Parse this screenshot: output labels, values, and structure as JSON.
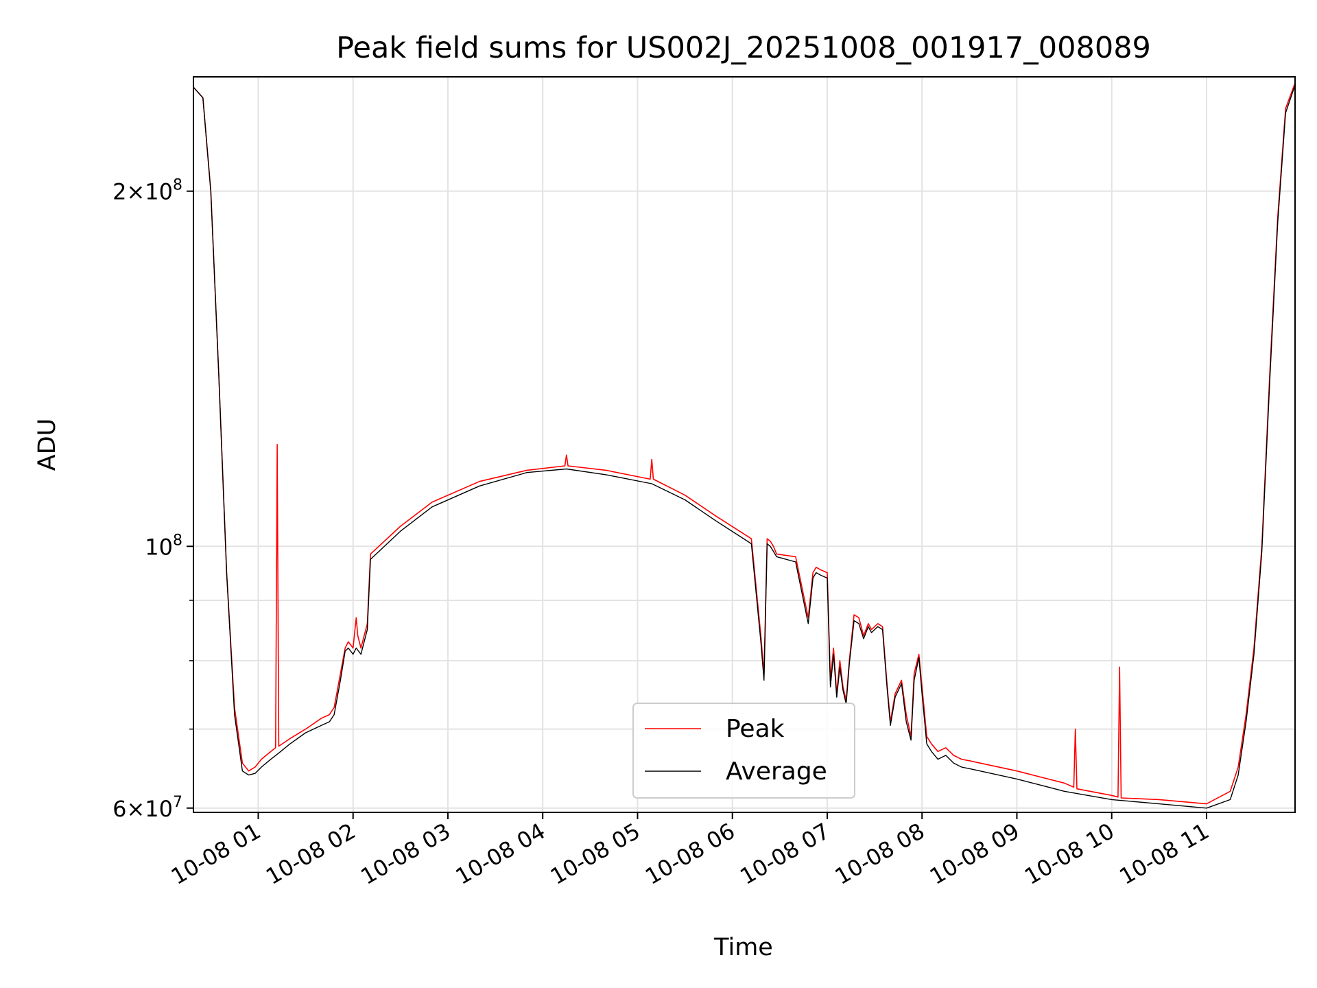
{
  "chart_data": {
    "type": "line",
    "title": "Peak field sums for US002J_20251008_001917_008089",
    "xlabel": "Time",
    "ylabel": "ADU",
    "xlim": [
      "2025-10-08 00:19",
      "2025-10-08 11:56"
    ],
    "ylim": [
      59500000,
      250000000
    ],
    "yscale": "log",
    "grid": true,
    "legend_position": "lower-center",
    "x_tick_labels": [
      "10-08 01",
      "10-08 02",
      "10-08 03",
      "10-08 04",
      "10-08 05",
      "10-08 06",
      "10-08 07",
      "10-08 08",
      "10-08 09",
      "10-08 10",
      "10-08 11"
    ],
    "y_tick_labels": [
      {
        "value": 200000000,
        "mantissa": "2",
        "exponent": "8"
      },
      {
        "value": 100000000,
        "mantissa": "",
        "exponent": "8"
      },
      {
        "value": 60000000,
        "mantissa": "6",
        "exponent": "7"
      }
    ],
    "series": [
      {
        "name": "Peak",
        "color": "#ff0000",
        "x": [
          "2025-10-08 00:19",
          "2025-10-08 00:25",
          "2025-10-08 00:30",
          "2025-10-08 00:35",
          "2025-10-08 00:40",
          "2025-10-08 00:45",
          "2025-10-08 00:50",
          "2025-10-08 00:54",
          "2025-10-08 00:58",
          "2025-10-08 01:02",
          "2025-10-08 01:08",
          "2025-10-08 01:11",
          "2025-10-08 01:12",
          "2025-10-08 01:13",
          "2025-10-08 01:20",
          "2025-10-08 01:30",
          "2025-10-08 01:40",
          "2025-10-08 01:45",
          "2025-10-08 01:48",
          "2025-10-08 01:52",
          "2025-10-08 01:55",
          "2025-10-08 01:57",
          "2025-10-08 02:00",
          "2025-10-08 02:02",
          "2025-10-08 02:03",
          "2025-10-08 02:05",
          "2025-10-08 02:09",
          "2025-10-08 02:11",
          "2025-10-08 02:30",
          "2025-10-08 02:50",
          "2025-10-08 03:20",
          "2025-10-08 03:50",
          "2025-10-08 04:14",
          "2025-10-08 04:15",
          "2025-10-08 04:16",
          "2025-10-08 04:40",
          "2025-10-08 05:08",
          "2025-10-08 05:09",
          "2025-10-08 05:10",
          "2025-10-08 05:30",
          "2025-10-08 05:50",
          "2025-10-08 06:12",
          "2025-10-08 06:18",
          "2025-10-08 06:20",
          "2025-10-08 06:22",
          "2025-10-08 06:24",
          "2025-10-08 06:26",
          "2025-10-08 06:28",
          "2025-10-08 06:40",
          "2025-10-08 06:48",
          "2025-10-08 06:51",
          "2025-10-08 06:53",
          "2025-10-08 06:56",
          "2025-10-08 07:00",
          "2025-10-08 07:02",
          "2025-10-08 07:04",
          "2025-10-08 07:06",
          "2025-10-08 07:08",
          "2025-10-08 07:10",
          "2025-10-08 07:12",
          "2025-10-08 07:14",
          "2025-10-08 07:17",
          "2025-10-08 07:20",
          "2025-10-08 07:23",
          "2025-10-08 07:26",
          "2025-10-08 07:28",
          "2025-10-08 07:32",
          "2025-10-08 07:35",
          "2025-10-08 07:38",
          "2025-10-08 07:40",
          "2025-10-08 07:43",
          "2025-10-08 07:47",
          "2025-10-08 07:50",
          "2025-10-08 07:53",
          "2025-10-08 07:55",
          "2025-10-08 07:58",
          "2025-10-08 08:00",
          "2025-10-08 08:03",
          "2025-10-08 08:06",
          "2025-10-08 08:10",
          "2025-10-08 08:15",
          "2025-10-08 08:20",
          "2025-10-08 08:25",
          "2025-10-08 08:30",
          "2025-10-08 09:00",
          "2025-10-08 09:30",
          "2025-10-08 09:36",
          "2025-10-08 09:37",
          "2025-10-08 09:38",
          "2025-10-08 10:00",
          "2025-10-08 10:04",
          "2025-10-08 10:05",
          "2025-10-08 10:06",
          "2025-10-08 10:30",
          "2025-10-08 11:00",
          "2025-10-08 11:15",
          "2025-10-08 11:20",
          "2025-10-08 11:25",
          "2025-10-08 11:30",
          "2025-10-08 11:35",
          "2025-10-08 11:40",
          "2025-10-08 11:45",
          "2025-10-08 11:50",
          "2025-10-08 11:56"
        ],
        "y": [
          245000000,
          240000000,
          200000000,
          140000000,
          95000000,
          73000000,
          65500000,
          64500000,
          65000000,
          66000000,
          67000000,
          67500000,
          122000000,
          67700000,
          68700000,
          70000000,
          71500000,
          72000000,
          73000000,
          78000000,
          82000000,
          83000000,
          82000000,
          87000000,
          84000000,
          82000000,
          86000000,
          98500000,
          104000000,
          109000000,
          113500000,
          116000000,
          117000000,
          119500000,
          117000000,
          116000000,
          114000000,
          118500000,
          114000000,
          110500000,
          106000000,
          101500000,
          84000000,
          78000000,
          101500000,
          101000000,
          100000000,
          98500000,
          98000000,
          87000000,
          95000000,
          96000000,
          95500000,
          95000000,
          77000000,
          82000000,
          75000000,
          80000000,
          76000000,
          74000000,
          80000000,
          87500000,
          87000000,
          84000000,
          86000000,
          85000000,
          86000000,
          85500000,
          76000000,
          71000000,
          75000000,
          77000000,
          72000000,
          69000000,
          78000000,
          81000000,
          76000000,
          69000000,
          68000000,
          67000000,
          67500000,
          66500000,
          66000000,
          65800000,
          64500000,
          63000000,
          62500000,
          70000000,
          62300000,
          61500000,
          61300000,
          79000000,
          61200000,
          61000000,
          60500000,
          62000000,
          65000000,
          72000000,
          82000000,
          100000000,
          140000000,
          190000000,
          235000000,
          247000000
        ]
      },
      {
        "name": "Average",
        "color": "#000000",
        "x": [
          "2025-10-08 00:19",
          "2025-10-08 00:25",
          "2025-10-08 00:30",
          "2025-10-08 00:35",
          "2025-10-08 00:40",
          "2025-10-08 00:45",
          "2025-10-08 00:50",
          "2025-10-08 00:54",
          "2025-10-08 00:58",
          "2025-10-08 01:02",
          "2025-10-08 01:08",
          "2025-10-08 01:13",
          "2025-10-08 01:20",
          "2025-10-08 01:30",
          "2025-10-08 01:40",
          "2025-10-08 01:45",
          "2025-10-08 01:48",
          "2025-10-08 01:52",
          "2025-10-08 01:55",
          "2025-10-08 01:57",
          "2025-10-08 02:00",
          "2025-10-08 02:02",
          "2025-10-08 02:05",
          "2025-10-08 02:09",
          "2025-10-08 02:11",
          "2025-10-08 02:30",
          "2025-10-08 02:50",
          "2025-10-08 03:20",
          "2025-10-08 03:50",
          "2025-10-08 04:15",
          "2025-10-08 04:40",
          "2025-10-08 05:09",
          "2025-10-08 05:30",
          "2025-10-08 05:50",
          "2025-10-08 06:12",
          "2025-10-08 06:18",
          "2025-10-08 06:20",
          "2025-10-08 06:22",
          "2025-10-08 06:24",
          "2025-10-08 06:26",
          "2025-10-08 06:28",
          "2025-10-08 06:40",
          "2025-10-08 06:48",
          "2025-10-08 06:51",
          "2025-10-08 06:53",
          "2025-10-08 06:56",
          "2025-10-08 07:00",
          "2025-10-08 07:02",
          "2025-10-08 07:04",
          "2025-10-08 07:06",
          "2025-10-08 07:08",
          "2025-10-08 07:10",
          "2025-10-08 07:12",
          "2025-10-08 07:14",
          "2025-10-08 07:17",
          "2025-10-08 07:20",
          "2025-10-08 07:23",
          "2025-10-08 07:26",
          "2025-10-08 07:28",
          "2025-10-08 07:32",
          "2025-10-08 07:35",
          "2025-10-08 07:38",
          "2025-10-08 07:40",
          "2025-10-08 07:43",
          "2025-10-08 07:47",
          "2025-10-08 07:50",
          "2025-10-08 07:53",
          "2025-10-08 07:55",
          "2025-10-08 07:58",
          "2025-10-08 08:00",
          "2025-10-08 08:03",
          "2025-10-08 08:06",
          "2025-10-08 08:10",
          "2025-10-08 08:15",
          "2025-10-08 08:20",
          "2025-10-08 08:25",
          "2025-10-08 08:30",
          "2025-10-08 09:00",
          "2025-10-08 09:30",
          "2025-10-08 10:00",
          "2025-10-08 10:30",
          "2025-10-08 11:00",
          "2025-10-08 11:15",
          "2025-10-08 11:20",
          "2025-10-08 11:25",
          "2025-10-08 11:30",
          "2025-10-08 11:35",
          "2025-10-08 11:40",
          "2025-10-08 11:45",
          "2025-10-08 11:50",
          "2025-10-08 11:56"
        ],
        "y": [
          245000000,
          240000000,
          200000000,
          140000000,
          95000000,
          72000000,
          64500000,
          64000000,
          64200000,
          65000000,
          66000000,
          66800000,
          68000000,
          69500000,
          70500000,
          71000000,
          72000000,
          77000000,
          81500000,
          82000000,
          81000000,
          82000000,
          81000000,
          85000000,
          97500000,
          103000000,
          108000000,
          112500000,
          115500000,
          116300000,
          115000000,
          113000000,
          109500000,
          105000000,
          100500000,
          83000000,
          77000000,
          100500000,
          100000000,
          99000000,
          98000000,
          97000000,
          86000000,
          94000000,
          95000000,
          94500000,
          94000000,
          76000000,
          81000000,
          74500000,
          79000000,
          75500000,
          73500000,
          79500000,
          86500000,
          86000000,
          83500000,
          85500000,
          84500000,
          85500000,
          85000000,
          75500000,
          70500000,
          74500000,
          76500000,
          71000000,
          68500000,
          77000000,
          80500000,
          75000000,
          68000000,
          67000000,
          66000000,
          66500000,
          65500000,
          65000000,
          64800000,
          63500000,
          62000000,
          61000000,
          60500000,
          60000000,
          61000000,
          64000000,
          71000000,
          81000000,
          99000000,
          138000000,
          188000000,
          233000000,
          246000000
        ]
      }
    ]
  }
}
